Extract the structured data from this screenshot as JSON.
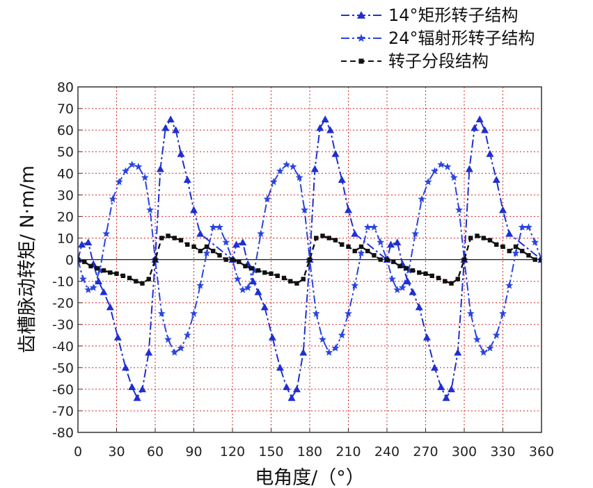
{
  "chart_data": {
    "type": "line",
    "xlabel": "电角度/（°）",
    "ylabel": "齿槽脉动转矩/ N·m/m",
    "xlim": [
      0,
      360
    ],
    "ylim": [
      -80,
      80
    ],
    "x_ticks": [
      "0",
      "30",
      "60",
      "90",
      "120",
      "150",
      "180",
      "210",
      "240",
      "270",
      "300",
      "330",
      "360"
    ],
    "y_ticks": [
      "80",
      "70",
      "60",
      "50",
      "40",
      "30",
      "20",
      "10",
      "0",
      "-10",
      "-20",
      "-30",
      "-40",
      "-50",
      "-60",
      "-70",
      "-80"
    ],
    "grid": true,
    "legend_position": "top-right",
    "series": [
      {
        "name": "14°矩形转子结构",
        "color": "#1f2fd0",
        "marker": "triangle",
        "x": [
          0,
          3,
          8,
          12,
          16,
          20,
          25,
          31,
          37,
          42,
          46,
          50,
          55,
          60,
          64,
          68,
          72,
          76,
          80,
          85,
          90,
          95
        ],
        "y": [
          0,
          7,
          8,
          -2,
          -10,
          -15,
          -22,
          -36,
          -50,
          -59,
          -64,
          -60,
          -43,
          0,
          42,
          61,
          65,
          60,
          49,
          37,
          23,
          12
        ]
      },
      {
        "name": "24°辐射形转子结构",
        "color": "#2a44e0",
        "marker": "star",
        "x": [
          0,
          4,
          8,
          12,
          17,
          22,
          27,
          32,
          37,
          42,
          47,
          52,
          56,
          60,
          65,
          70,
          75,
          80,
          85,
          90,
          95,
          100,
          105,
          110,
          115
        ],
        "y": [
          0,
          -9,
          -14,
          -13,
          -5,
          12,
          28,
          36,
          41,
          44,
          43,
          38,
          23,
          0,
          -25,
          -37,
          -43,
          -41,
          -35,
          -25,
          -12,
          3,
          15,
          15,
          8
        ]
      },
      {
        "name": "转子分段结构",
        "color": "#111111",
        "marker": "square",
        "x": [
          0,
          5,
          10,
          15,
          20,
          25,
          30,
          35,
          40,
          45,
          50,
          55,
          60,
          65,
          70,
          75,
          80,
          85,
          90,
          95,
          100,
          105,
          110,
          115
        ],
        "y": [
          0,
          -1,
          -3,
          -4,
          -5,
          -6,
          -6.5,
          -7.5,
          -8.5,
          -10,
          -11,
          -9,
          0,
          10,
          11,
          10,
          9,
          7,
          6,
          4,
          6,
          4,
          2,
          0
        ]
      }
    ]
  }
}
